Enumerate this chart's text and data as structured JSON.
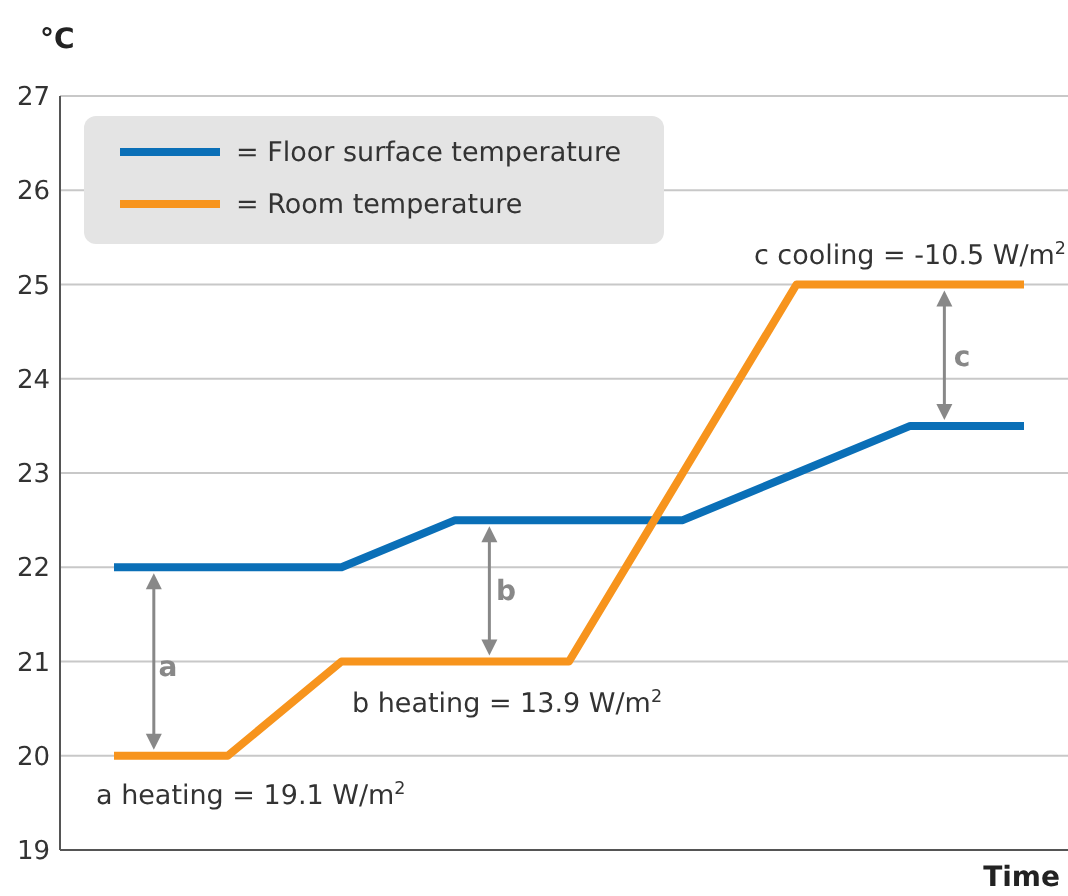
{
  "chart_data": {
    "type": "line",
    "xlabel": "Time",
    "ylabel": "°C",
    "categories": [
      null,
      null,
      null,
      null,
      null,
      null,
      null,
      null,
      null
    ],
    "series": [
      {
        "name": "= Floor surface temperature",
        "color": "#0a6fb7",
        "values": [
          22,
          22,
          22,
          22.5,
          22.5,
          22.5,
          23,
          23.5,
          23.5
        ]
      },
      {
        "name": "= Room temperature",
        "color": "#f7941d",
        "values": [
          20,
          20,
          21,
          21,
          21,
          23,
          25,
          25,
          25
        ]
      }
    ],
    "ylim": [
      19,
      27
    ],
    "yticks": [
      19,
      20,
      21,
      22,
      23,
      24,
      25,
      26,
      27
    ],
    "grid": "y",
    "legend": "top left",
    "marker": "none",
    "line_style": "solid",
    "annotations": [
      "a heating = 19.1 W/m$^{2}$",
      "b heating = 13.9 W/m$^{2}$",
      "c cooling = -10.5 W/m$^{2}$",
      "a",
      "b",
      "c"
    ]
  }
}
